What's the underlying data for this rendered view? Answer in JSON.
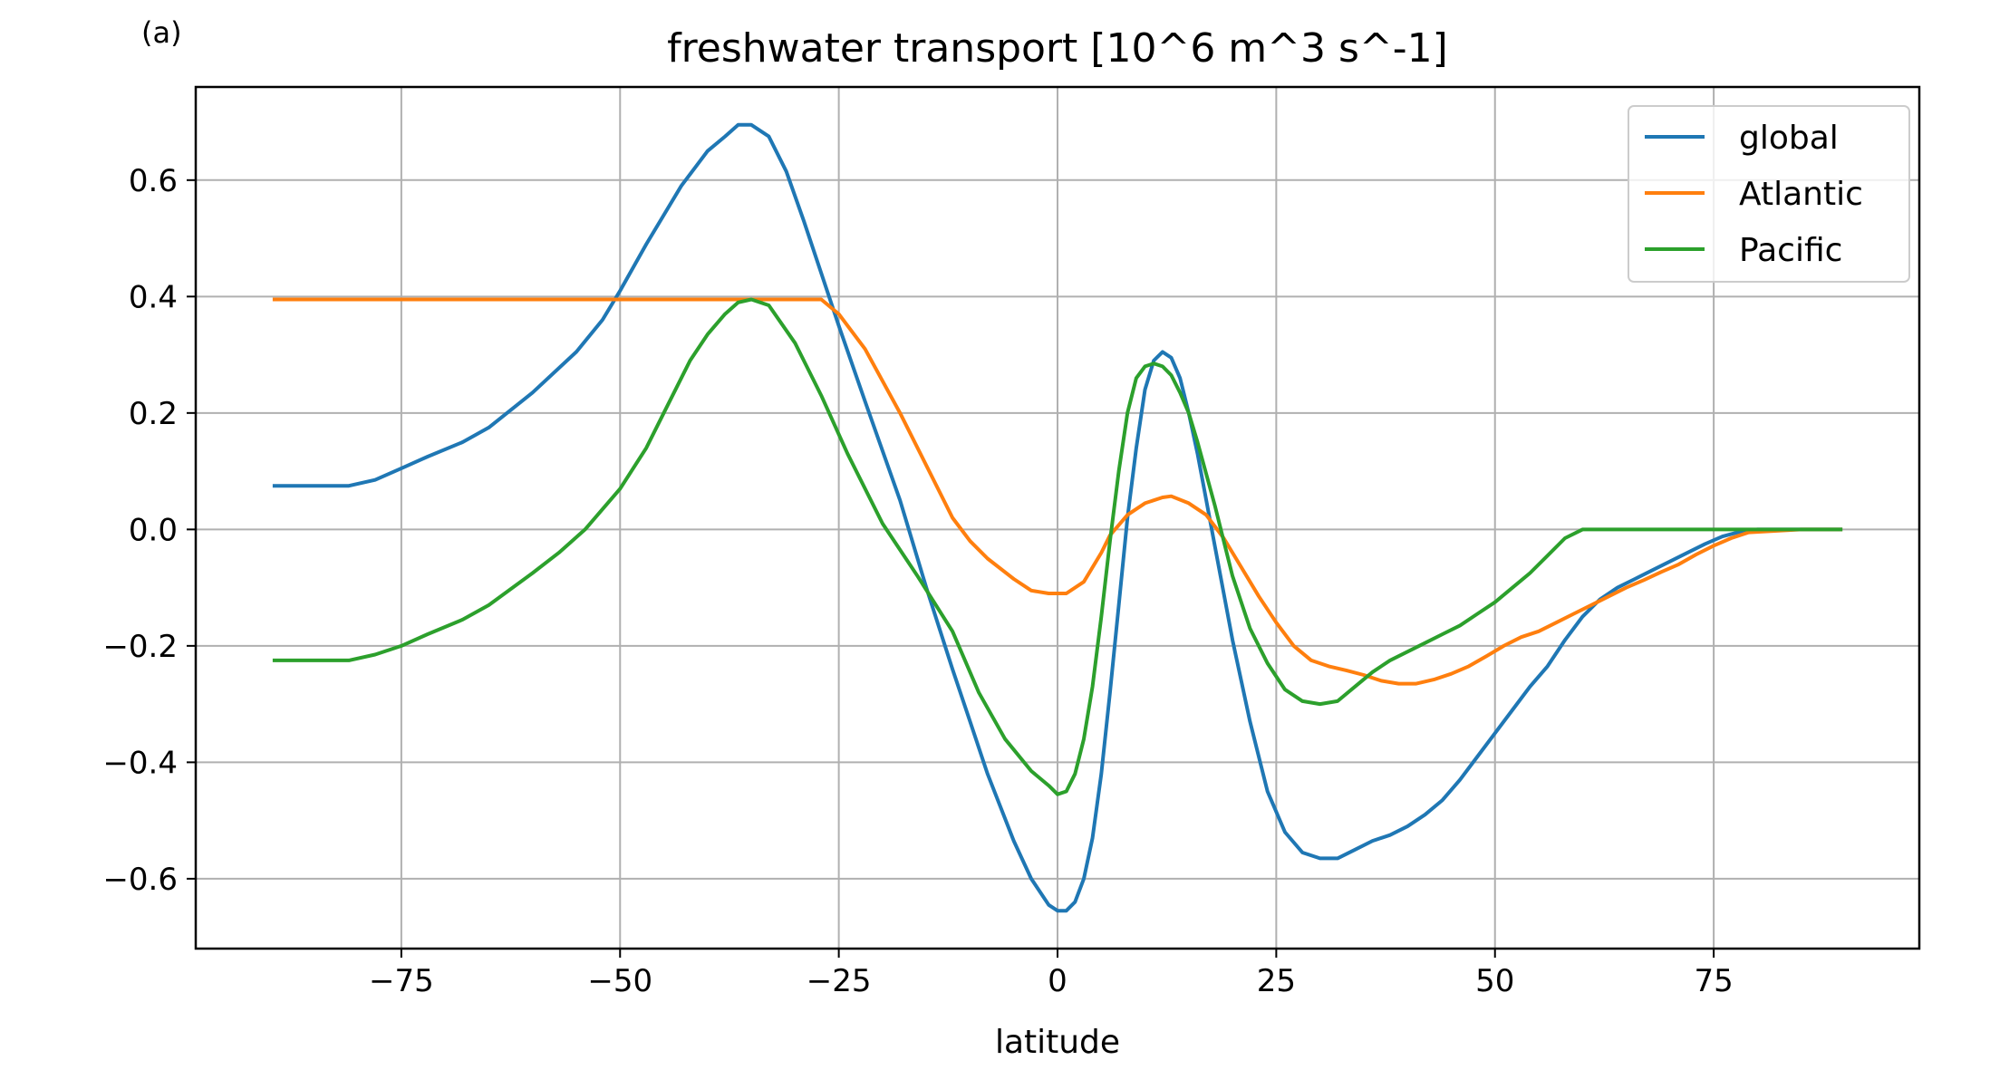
{
  "panel_label": "(a)",
  "chart_data": {
    "type": "line",
    "title": "freshwater transport [10^6 m^3 s^-1]",
    "xlabel": "latitude",
    "ylabel": "",
    "xlim": [
      -98.5,
      98.5
    ],
    "ylim": [
      -0.72,
      0.76
    ],
    "xticks": [
      -75,
      -50,
      -25,
      0,
      25,
      50,
      75
    ],
    "xtick_labels": [
      "−75",
      "−50",
      "−25",
      "0",
      "25",
      "50",
      "75"
    ],
    "yticks": [
      -0.6,
      -0.4,
      -0.2,
      0.0,
      0.2,
      0.4,
      0.6
    ],
    "ytick_labels": [
      "−0.6",
      "−0.4",
      "−0.2",
      "0.0",
      "0.2",
      "0.4",
      "0.6"
    ],
    "grid": true,
    "legend_position": "top-right",
    "series": [
      {
        "name": "global",
        "color": "#1f77b4",
        "x": [
          -89.5,
          -81,
          -78,
          -75,
          -72,
          -68,
          -65,
          -60,
          -55,
          -52,
          -50,
          -47,
          -45,
          -43,
          -40,
          -38,
          -36.5,
          -35,
          -33,
          -31,
          -29,
          -27,
          -25,
          -22,
          -18,
          -15,
          -12,
          -10,
          -8,
          -5,
          -3,
          -1,
          0,
          1,
          2,
          3,
          4,
          5,
          6,
          7,
          8,
          9,
          10,
          11,
          12,
          13,
          14,
          15,
          16,
          18,
          20,
          22,
          24,
          26,
          28,
          30,
          32,
          34,
          36,
          38,
          40,
          42,
          44,
          46,
          48,
          50,
          52,
          54,
          56,
          58,
          60,
          62,
          64,
          66,
          68,
          70,
          72,
          74,
          76,
          78,
          80,
          85,
          89.5
        ],
        "y": [
          0.075,
          0.075,
          0.085,
          0.105,
          0.125,
          0.15,
          0.175,
          0.235,
          0.305,
          0.36,
          0.41,
          0.49,
          0.54,
          0.59,
          0.65,
          0.675,
          0.695,
          0.695,
          0.675,
          0.615,
          0.53,
          0.44,
          0.35,
          0.22,
          0.05,
          -0.1,
          -0.24,
          -0.33,
          -0.42,
          -0.535,
          -0.6,
          -0.645,
          -0.655,
          -0.655,
          -0.64,
          -0.6,
          -0.53,
          -0.42,
          -0.28,
          -0.13,
          0.02,
          0.14,
          0.24,
          0.29,
          0.305,
          0.295,
          0.26,
          0.2,
          0.13,
          -0.03,
          -0.19,
          -0.33,
          -0.45,
          -0.52,
          -0.555,
          -0.565,
          -0.565,
          -0.55,
          -0.535,
          -0.525,
          -0.51,
          -0.49,
          -0.465,
          -0.43,
          -0.39,
          -0.35,
          -0.31,
          -0.27,
          -0.235,
          -0.19,
          -0.15,
          -0.12,
          -0.1,
          -0.085,
          -0.07,
          -0.055,
          -0.04,
          -0.025,
          -0.012,
          -0.004,
          0.0,
          0.0,
          0.0
        ]
      },
      {
        "name": "Atlantic",
        "color": "#ff7f0e",
        "x": [
          -89.5,
          -70,
          -50,
          -35,
          -27,
          -25,
          -22,
          -18,
          -14,
          -12,
          -10,
          -8,
          -5,
          -3,
          -1,
          0,
          1,
          3,
          5,
          6,
          8,
          10,
          12,
          13,
          15,
          17,
          19,
          21,
          23,
          25,
          27,
          29,
          31,
          33,
          35,
          37,
          39,
          41,
          43,
          45,
          47,
          49,
          51,
          53,
          55,
          57,
          59,
          61,
          63,
          65,
          67,
          69,
          71,
          73,
          75,
          77,
          79,
          85,
          89.5
        ],
        "y": [
          0.395,
          0.395,
          0.395,
          0.395,
          0.395,
          0.37,
          0.31,
          0.2,
          0.08,
          0.02,
          -0.02,
          -0.05,
          -0.085,
          -0.105,
          -0.11,
          -0.11,
          -0.11,
          -0.09,
          -0.04,
          -0.01,
          0.025,
          0.045,
          0.055,
          0.057,
          0.045,
          0.025,
          -0.015,
          -0.065,
          -0.115,
          -0.16,
          -0.2,
          -0.225,
          -0.235,
          -0.242,
          -0.25,
          -0.26,
          -0.265,
          -0.265,
          -0.258,
          -0.248,
          -0.235,
          -0.218,
          -0.2,
          -0.185,
          -0.175,
          -0.16,
          -0.145,
          -0.13,
          -0.115,
          -0.1,
          -0.087,
          -0.073,
          -0.06,
          -0.043,
          -0.028,
          -0.015,
          -0.005,
          0.0,
          0.0
        ]
      },
      {
        "name": "Pacific",
        "color": "#2ca02c",
        "x": [
          -89.5,
          -81,
          -78,
          -75,
          -72,
          -68,
          -65,
          -60,
          -57,
          -54,
          -50,
          -47,
          -45,
          -42,
          -40,
          -38,
          -36.5,
          -35,
          -33,
          -30,
          -27,
          -24,
          -20,
          -16,
          -12,
          -9,
          -6,
          -3,
          -1,
          0,
          1,
          2,
          3,
          4,
          5,
          6,
          7,
          8,
          9,
          10,
          11,
          12,
          13,
          14,
          15,
          16,
          18,
          20,
          22,
          24,
          26,
          28,
          30,
          32,
          34,
          36,
          38,
          40,
          42,
          44,
          46,
          48,
          50,
          52,
          54,
          56,
          58,
          60,
          62,
          65,
          70,
          80,
          89.5
        ],
        "y": [
          -0.225,
          -0.225,
          -0.215,
          -0.2,
          -0.18,
          -0.155,
          -0.13,
          -0.075,
          -0.04,
          0.0,
          0.07,
          0.14,
          0.2,
          0.29,
          0.335,
          0.37,
          0.39,
          0.395,
          0.385,
          0.32,
          0.23,
          0.13,
          0.01,
          -0.08,
          -0.175,
          -0.28,
          -0.36,
          -0.415,
          -0.44,
          -0.455,
          -0.45,
          -0.42,
          -0.36,
          -0.27,
          -0.15,
          -0.02,
          0.1,
          0.2,
          0.26,
          0.28,
          0.285,
          0.28,
          0.265,
          0.235,
          0.2,
          0.15,
          0.04,
          -0.08,
          -0.17,
          -0.23,
          -0.275,
          -0.295,
          -0.3,
          -0.295,
          -0.27,
          -0.245,
          -0.225,
          -0.21,
          -0.195,
          -0.18,
          -0.165,
          -0.145,
          -0.125,
          -0.1,
          -0.075,
          -0.045,
          -0.015,
          0.0,
          0.0,
          0.0,
          0.0,
          0.0,
          0.0
        ]
      }
    ]
  }
}
